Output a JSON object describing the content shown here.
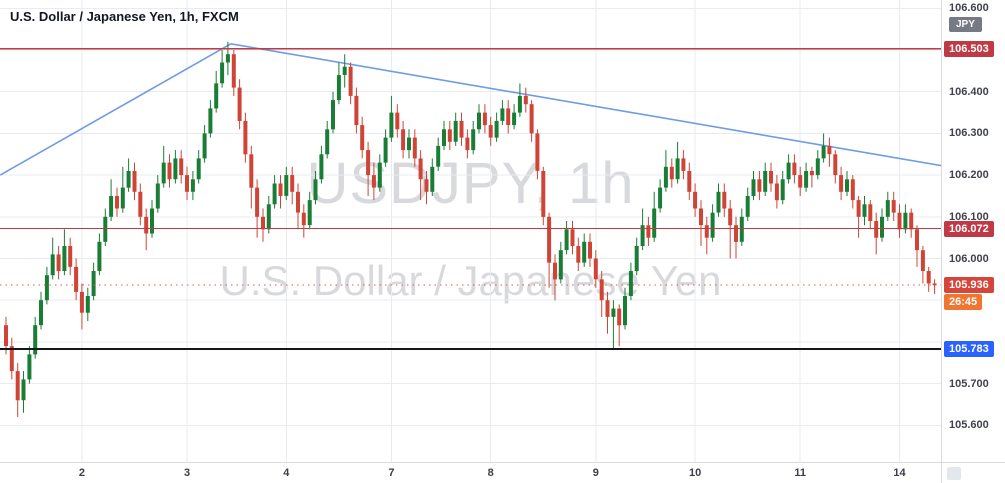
{
  "chart": {
    "title": "U.S. Dollar / Japanese Yen, 1h, FXCM",
    "watermark_line1": "USDJPY, 1h",
    "watermark_line2": "U.S. Dollar / Japanese Yen",
    "currency_badge": "JPY",
    "countdown": "26:45",
    "last_price": "105.936"
  },
  "colors": {
    "background": "#ffffff",
    "grid": "#e9ebf0",
    "up": "#1a7d36",
    "down": "#cf4436",
    "trend_blue": "#6f9ce3",
    "level_red": "#c03a45",
    "support_black": "#15161a",
    "last_price_red": "#d6453a",
    "countdown_bg": "#ee7631",
    "level_blue_badge": "#2962ff",
    "axis_text": "#40434c",
    "watermark": "rgba(140,144,153,0.34)"
  },
  "chart_data": {
    "type": "candlestick",
    "symbol": "USDJPY",
    "name": "U.S. Dollar / Japanese Yen",
    "interval": "1h",
    "exchange": "FXCM",
    "x_axis": {
      "labels": [
        "2",
        "3",
        "4",
        "7",
        "8",
        "9",
        "10",
        "11",
        "14"
      ],
      "label_indices": [
        13,
        31,
        48,
        66,
        83,
        101,
        118,
        136,
        153
      ]
    },
    "y_axis": {
      "top_price": 106.62,
      "bottom_price": 105.512,
      "grid_step": 0.1,
      "ticks": [
        {
          "price": 106.6,
          "label": "106.600"
        },
        {
          "price": 106.4,
          "label": "106.400"
        },
        {
          "price": 106.3,
          "label": "106.300"
        },
        {
          "price": 106.2,
          "label": "106.200"
        },
        {
          "price": 106.1,
          "label": "106.100"
        },
        {
          "price": 106.0,
          "label": "106.000"
        },
        {
          "price": 105.7,
          "label": "105.700"
        },
        {
          "price": 105.6,
          "label": "105.600"
        }
      ]
    },
    "horizontal_lines": [
      {
        "name": "resistance-line",
        "role": "level",
        "price": 106.503,
        "label": "106.503",
        "color": "#c03a45",
        "badge_bg": "#c03a45",
        "style": "solid",
        "stroke_width": 1.2
      },
      {
        "name": "mid-level-line",
        "role": "level",
        "price": 106.072,
        "label": "106.072",
        "color": "#c03a45",
        "badge_bg": "#c03a45",
        "style": "solid",
        "stroke_width": 1.2
      },
      {
        "name": "support-line",
        "role": "level",
        "price": 105.783,
        "label": "105.783",
        "color": "#15161a",
        "badge_bg": "#2962ff",
        "style": "solid",
        "stroke_width": 2
      },
      {
        "name": "last-price-line",
        "role": "last-price",
        "price": 105.936,
        "label": "105.936",
        "color": "#e0584e",
        "badge_bg": "#d6453a",
        "style": "dotted",
        "stroke_width": 1
      }
    ],
    "trendlines": [
      {
        "name": "ascending-trendline",
        "from_index": -1,
        "from_price": 106.2,
        "to_index": 38.5,
        "to_price": 106.515,
        "color": "#6f9ce3"
      },
      {
        "name": "descending-trendline",
        "from_index": 38.5,
        "from_price": 106.515,
        "to_index": 160.5,
        "to_price": 106.222,
        "color": "#6f9ce3"
      }
    ],
    "candles": [
      [
        105.84,
        105.86,
        105.77,
        105.79
      ],
      [
        105.79,
        105.81,
        105.71,
        105.73
      ],
      [
        105.73,
        105.75,
        105.62,
        105.66
      ],
      [
        105.66,
        105.73,
        105.63,
        105.71
      ],
      [
        105.71,
        105.79,
        105.7,
        105.77
      ],
      [
        105.77,
        105.86,
        105.76,
        105.84
      ],
      [
        105.84,
        105.92,
        105.83,
        105.9
      ],
      [
        105.9,
        105.98,
        105.89,
        105.96
      ],
      [
        105.96,
        106.05,
        105.95,
        106.01
      ],
      [
        106.01,
        106.03,
        105.95,
        105.97
      ],
      [
        105.97,
        106.07,
        105.96,
        106.03
      ],
      [
        106.03,
        106.05,
        105.96,
        105.98
      ],
      [
        105.98,
        106.0,
        105.9,
        105.92
      ],
      [
        105.92,
        105.94,
        105.83,
        105.87
      ],
      [
        105.87,
        105.93,
        105.85,
        105.91
      ],
      [
        105.91,
        105.99,
        105.9,
        105.97
      ],
      [
        105.97,
        106.06,
        105.96,
        106.04
      ],
      [
        106.04,
        106.12,
        106.03,
        106.1
      ],
      [
        106.1,
        106.19,
        106.09,
        106.15
      ],
      [
        106.15,
        106.17,
        106.1,
        106.12
      ],
      [
        106.12,
        106.22,
        106.11,
        106.17
      ],
      [
        106.17,
        106.24,
        106.16,
        106.21
      ],
      [
        106.21,
        106.23,
        106.14,
        106.16
      ],
      [
        106.16,
        106.18,
        106.08,
        106.1
      ],
      [
        106.1,
        106.12,
        106.02,
        106.06
      ],
      [
        106.06,
        106.14,
        106.05,
        106.12
      ],
      [
        106.12,
        106.2,
        106.11,
        106.18
      ],
      [
        106.18,
        106.27,
        106.17,
        106.23
      ],
      [
        106.23,
        106.25,
        106.17,
        106.19
      ],
      [
        106.19,
        106.26,
        106.18,
        106.24
      ],
      [
        106.24,
        106.26,
        106.18,
        106.2
      ],
      [
        106.2,
        106.22,
        106.14,
        106.16
      ],
      [
        106.16,
        106.21,
        106.14,
        106.19
      ],
      [
        106.19,
        106.26,
        106.18,
        106.24
      ],
      [
        106.24,
        106.32,
        106.23,
        106.3
      ],
      [
        106.3,
        106.38,
        106.29,
        106.36
      ],
      [
        106.36,
        106.45,
        106.35,
        106.42
      ],
      [
        106.42,
        106.5,
        106.41,
        106.47
      ],
      [
        106.47,
        106.52,
        106.44,
        106.49
      ],
      [
        106.49,
        106.5,
        106.39,
        106.41
      ],
      [
        106.41,
        106.43,
        106.31,
        106.33
      ],
      [
        106.33,
        106.35,
        106.23,
        106.25
      ],
      [
        106.25,
        106.27,
        106.12,
        106.17
      ],
      [
        106.17,
        106.19,
        106.05,
        106.1
      ],
      [
        106.1,
        106.12,
        106.04,
        106.07
      ],
      [
        106.07,
        106.15,
        106.06,
        106.13
      ],
      [
        106.13,
        106.2,
        106.12,
        106.18
      ],
      [
        106.18,
        106.2,
        106.12,
        106.15
      ],
      [
        106.15,
        106.22,
        106.14,
        106.2
      ],
      [
        106.2,
        106.22,
        106.13,
        106.16
      ],
      [
        106.16,
        106.18,
        106.07,
        106.11
      ],
      [
        106.11,
        106.13,
        106.05,
        106.08
      ],
      [
        106.08,
        106.16,
        106.07,
        106.14
      ],
      [
        106.14,
        106.21,
        106.13,
        106.19
      ],
      [
        106.19,
        106.27,
        106.18,
        106.25
      ],
      [
        106.25,
        106.33,
        106.24,
        106.31
      ],
      [
        106.31,
        106.4,
        106.3,
        106.38
      ],
      [
        106.38,
        106.47,
        106.37,
        106.44
      ],
      [
        106.44,
        106.49,
        106.41,
        106.46
      ],
      [
        106.46,
        106.47,
        106.37,
        106.39
      ],
      [
        106.39,
        106.41,
        106.3,
        106.32
      ],
      [
        106.32,
        106.34,
        106.24,
        106.26
      ],
      [
        106.26,
        106.28,
        106.15,
        106.2
      ],
      [
        106.2,
        106.23,
        106.14,
        106.17
      ],
      [
        106.17,
        106.25,
        106.16,
        106.23
      ],
      [
        106.23,
        106.31,
        106.22,
        106.29
      ],
      [
        106.29,
        106.39,
        106.28,
        106.35
      ],
      [
        106.35,
        106.37,
        106.29,
        106.31
      ],
      [
        106.31,
        106.33,
        106.24,
        106.26
      ],
      [
        106.26,
        106.31,
        106.24,
        106.29
      ],
      [
        106.29,
        106.31,
        106.22,
        106.24
      ],
      [
        106.24,
        106.26,
        106.14,
        106.19
      ],
      [
        106.19,
        106.21,
        106.13,
        106.16
      ],
      [
        106.16,
        106.24,
        106.15,
        106.22
      ],
      [
        106.22,
        106.29,
        106.21,
        106.27
      ],
      [
        106.27,
        106.33,
        106.26,
        106.31
      ],
      [
        106.31,
        106.33,
        106.26,
        106.28
      ],
      [
        106.28,
        106.35,
        106.27,
        106.33
      ],
      [
        106.33,
        106.35,
        106.27,
        106.29
      ],
      [
        106.29,
        106.31,
        106.24,
        106.26
      ],
      [
        106.26,
        106.33,
        106.25,
        106.31
      ],
      [
        106.31,
        106.37,
        106.3,
        106.35
      ],
      [
        106.35,
        106.37,
        106.3,
        106.32
      ],
      [
        106.32,
        106.34,
        106.27,
        106.29
      ],
      [
        106.29,
        106.35,
        106.28,
        106.33
      ],
      [
        106.33,
        106.38,
        106.32,
        106.36
      ],
      [
        106.36,
        106.38,
        106.3,
        106.32
      ],
      [
        106.32,
        106.37,
        106.31,
        106.35
      ],
      [
        106.35,
        106.42,
        106.34,
        106.39
      ],
      [
        106.39,
        106.41,
        106.35,
        106.37
      ],
      [
        106.37,
        106.38,
        106.28,
        106.3
      ],
      [
        106.3,
        106.31,
        106.19,
        106.21
      ],
      [
        106.21,
        106.22,
        106.08,
        106.1
      ],
      [
        106.1,
        106.11,
        105.93,
        105.99
      ],
      [
        105.99,
        106.01,
        105.9,
        105.95
      ],
      [
        105.95,
        106.04,
        105.94,
        106.02
      ],
      [
        106.02,
        106.09,
        106.01,
        106.07
      ],
      [
        106.07,
        106.09,
        106.01,
        106.03
      ],
      [
        106.03,
        106.05,
        105.97,
        105.99
      ],
      [
        105.99,
        106.06,
        105.98,
        106.04
      ],
      [
        106.04,
        106.06,
        105.98,
        106.0
      ],
      [
        106.0,
        106.02,
        105.93,
        105.95
      ],
      [
        105.95,
        105.97,
        105.86,
        105.9
      ],
      [
        105.9,
        105.92,
        105.82,
        105.86
      ],
      [
        105.86,
        105.9,
        105.785,
        105.88
      ],
      [
        105.88,
        105.89,
        105.79,
        105.84
      ],
      [
        105.84,
        105.93,
        105.83,
        105.91
      ],
      [
        105.91,
        105.99,
        105.9,
        105.97
      ],
      [
        105.97,
        106.05,
        105.96,
        106.03
      ],
      [
        106.03,
        106.12,
        106.02,
        106.08
      ],
      [
        106.08,
        106.1,
        106.03,
        106.05
      ],
      [
        106.05,
        106.16,
        106.04,
        106.12
      ],
      [
        106.12,
        106.19,
        106.11,
        106.17
      ],
      [
        106.17,
        106.26,
        106.16,
        106.22
      ],
      [
        106.22,
        106.24,
        106.17,
        106.19
      ],
      [
        106.19,
        106.28,
        106.18,
        106.24
      ],
      [
        106.24,
        106.26,
        106.19,
        106.21
      ],
      [
        106.21,
        106.23,
        106.14,
        106.16
      ],
      [
        106.16,
        106.18,
        106.1,
        106.12
      ],
      [
        106.12,
        106.14,
        106.03,
        106.08
      ],
      [
        106.08,
        106.1,
        106.01,
        106.05
      ],
      [
        106.05,
        106.13,
        106.04,
        106.11
      ],
      [
        106.11,
        106.18,
        106.1,
        106.16
      ],
      [
        106.16,
        106.18,
        106.1,
        106.12
      ],
      [
        106.12,
        106.14,
        106.0,
        106.08
      ],
      [
        106.08,
        106.1,
        106.0,
        106.04
      ],
      [
        106.04,
        106.12,
        106.03,
        106.1
      ],
      [
        106.1,
        106.17,
        106.09,
        106.15
      ],
      [
        106.15,
        106.21,
        106.14,
        106.19
      ],
      [
        106.19,
        106.21,
        106.14,
        106.16
      ],
      [
        106.16,
        106.23,
        106.15,
        106.21
      ],
      [
        106.21,
        106.23,
        106.16,
        106.18
      ],
      [
        106.18,
        106.2,
        106.12,
        106.14
      ],
      [
        106.14,
        106.21,
        106.13,
        106.19
      ],
      [
        106.19,
        106.25,
        106.18,
        106.23
      ],
      [
        106.23,
        106.25,
        106.18,
        106.2
      ],
      [
        106.2,
        106.22,
        106.15,
        106.17
      ],
      [
        106.17,
        106.23,
        106.16,
        106.21
      ],
      [
        106.21,
        106.22,
        106.17,
        106.2
      ],
      [
        106.2,
        106.26,
        106.19,
        106.24
      ],
      [
        106.24,
        106.3,
        106.23,
        106.27
      ],
      [
        106.27,
        106.29,
        106.22,
        106.25
      ],
      [
        106.25,
        106.26,
        106.18,
        106.2
      ],
      [
        106.2,
        106.22,
        106.14,
        106.16
      ],
      [
        106.16,
        106.21,
        106.15,
        106.19
      ],
      [
        106.19,
        106.2,
        106.12,
        106.14
      ],
      [
        106.14,
        106.15,
        106.05,
        106.1
      ],
      [
        106.1,
        106.15,
        106.08,
        106.13
      ],
      [
        106.13,
        106.14,
        106.07,
        106.09
      ],
      [
        106.09,
        106.11,
        106.01,
        106.05
      ],
      [
        106.05,
        106.12,
        106.04,
        106.1
      ],
      [
        106.1,
        106.16,
        106.09,
        106.14
      ],
      [
        106.14,
        106.16,
        106.09,
        106.11
      ],
      [
        106.11,
        106.13,
        106.05,
        106.07
      ],
      [
        106.07,
        106.13,
        106.06,
        106.11
      ],
      [
        106.11,
        106.12,
        106.05,
        106.07
      ],
      [
        106.07,
        106.08,
        105.98,
        106.02
      ],
      [
        106.02,
        106.03,
        105.94,
        105.97
      ],
      [
        105.97,
        105.98,
        105.92,
        105.94
      ],
      [
        105.94,
        105.95,
        105.915,
        105.936
      ]
    ]
  }
}
